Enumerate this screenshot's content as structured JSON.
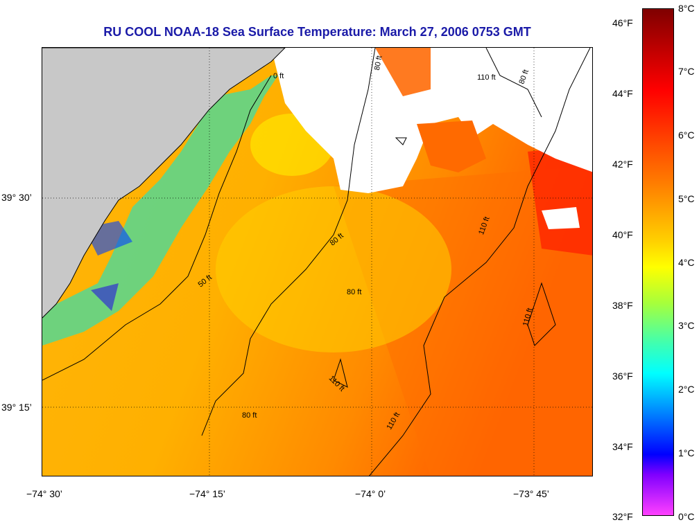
{
  "title": "RU COOL  NOAA-18  Sea Surface Temperature:  March 27, 2006 0753 GMT",
  "axes": {
    "x_ticks": [
      "−74° 30’",
      "−74° 15’",
      "−74° 0’",
      "−73° 45’"
    ],
    "y_ticks": [
      "39° 30’",
      "39° 15’"
    ]
  },
  "contours": {
    "labels": [
      "0 ft",
      "50 ft",
      "80 ft",
      "80 ft",
      "80 ft",
      "80 ft",
      "80 ft",
      "110 ft",
      "110 ft",
      "110 ft",
      "110 ft",
      "110 ft"
    ]
  },
  "colorbar": {
    "fahrenheit": [
      "46°F",
      "44°F",
      "42°F",
      "40°F",
      "38°F",
      "36°F",
      "34°F",
      "32°F"
    ],
    "celsius": [
      "8°C",
      "7°C",
      "6°C",
      "5°C",
      "4°C",
      "3°C",
      "2°C",
      "1°C",
      "0°C"
    ]
  },
  "colors": {
    "title": "#1a1aa8",
    "land": "#c8c8c8",
    "cloud": "#ffffff",
    "sst_dominant": "#ffb000"
  }
}
